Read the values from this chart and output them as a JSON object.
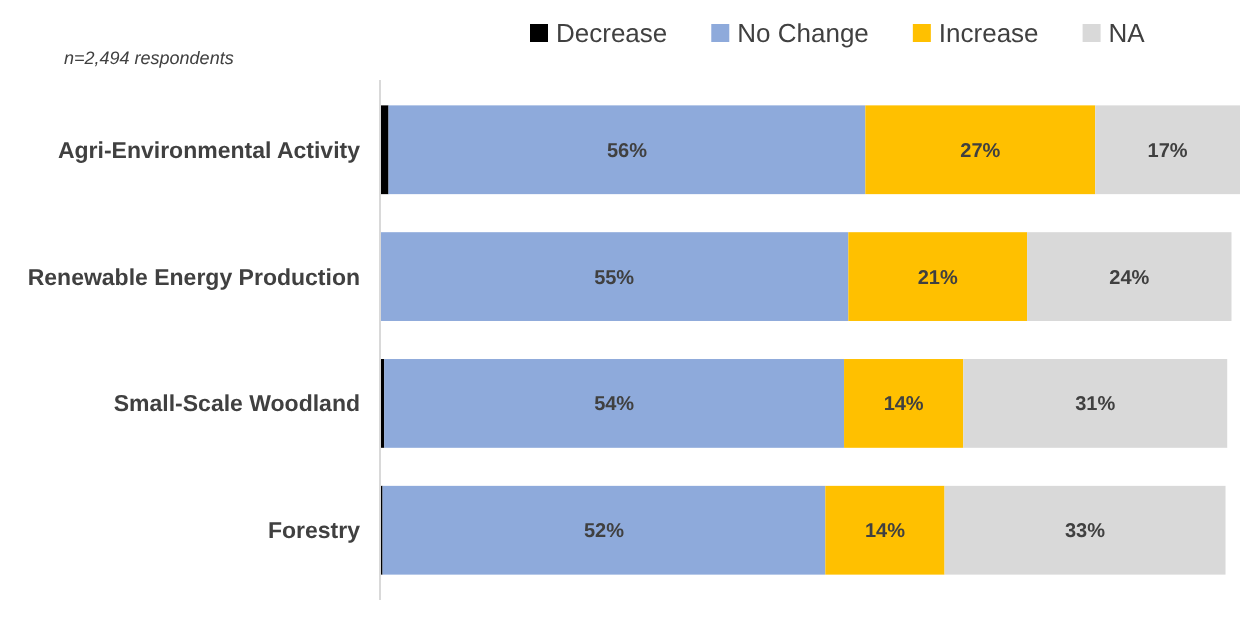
{
  "chart_data": {
    "type": "bar",
    "orientation": "horizontal",
    "stacked": true,
    "legend": "top",
    "annotations": [
      "n=2,494 respondents"
    ],
    "categories": [
      "Agri-Environmental Activity",
      "Renewable Energy Production",
      "Small-Scale Woodland",
      "Forestry"
    ],
    "series": [
      {
        "name": "Decrease",
        "color": "#000000",
        "values": [
          1,
          null,
          0.5,
          0.3
        ],
        "value_labels": [
          null,
          null,
          null,
          null
        ]
      },
      {
        "name": "No Change",
        "color": "#8eaadb",
        "values": [
          56,
          55,
          54,
          52
        ],
        "value_labels": [
          "56%",
          "55%",
          "54%",
          "52%"
        ]
      },
      {
        "name": "Increase",
        "color": "#ffc000",
        "values": [
          27,
          21,
          14,
          14
        ],
        "value_labels": [
          "27%",
          "21%",
          "14%",
          "14%"
        ]
      },
      {
        "name": "NA",
        "color": "#d9d9d9",
        "values": [
          17,
          24,
          31,
          33
        ],
        "value_labels": [
          "17%",
          "24%",
          "31%",
          "33%"
        ]
      }
    ]
  }
}
